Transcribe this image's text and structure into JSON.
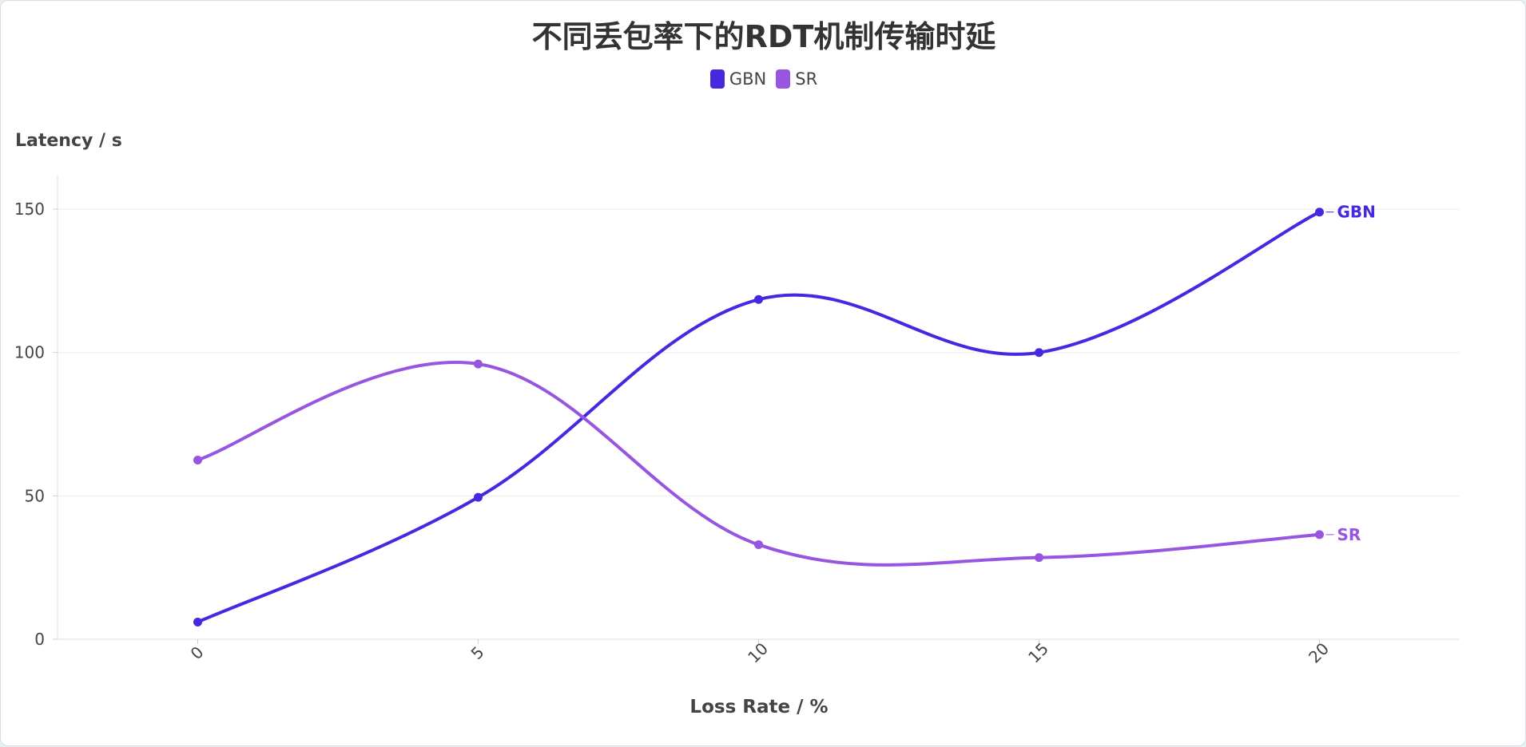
{
  "chart_data": {
    "type": "line",
    "title": "不同丢包率下的RDT机制传输时延",
    "xlabel": "Loss Rate / %",
    "ylabel": "Latency / s",
    "x": [
      0,
      5,
      10,
      15,
      20
    ],
    "x_tick_labels": [
      "0",
      "5",
      "10",
      "15",
      "20"
    ],
    "xlim": [
      -2.5,
      22.5
    ],
    "ylim": [
      0,
      162
    ],
    "y_ticks": [
      0,
      50,
      100,
      150
    ],
    "y_tick_labels": [
      "0",
      "50",
      "100",
      "150"
    ],
    "grid": true,
    "legend_position": "top-center",
    "smooth": true,
    "series": [
      {
        "name": "GBN",
        "color": "#4429e0",
        "values": [
          6,
          49.5,
          118.5,
          100,
          149
        ]
      },
      {
        "name": "SR",
        "color": "#9755e0",
        "values": [
          62.5,
          96,
          33,
          28.5,
          36.5
        ]
      }
    ]
  }
}
